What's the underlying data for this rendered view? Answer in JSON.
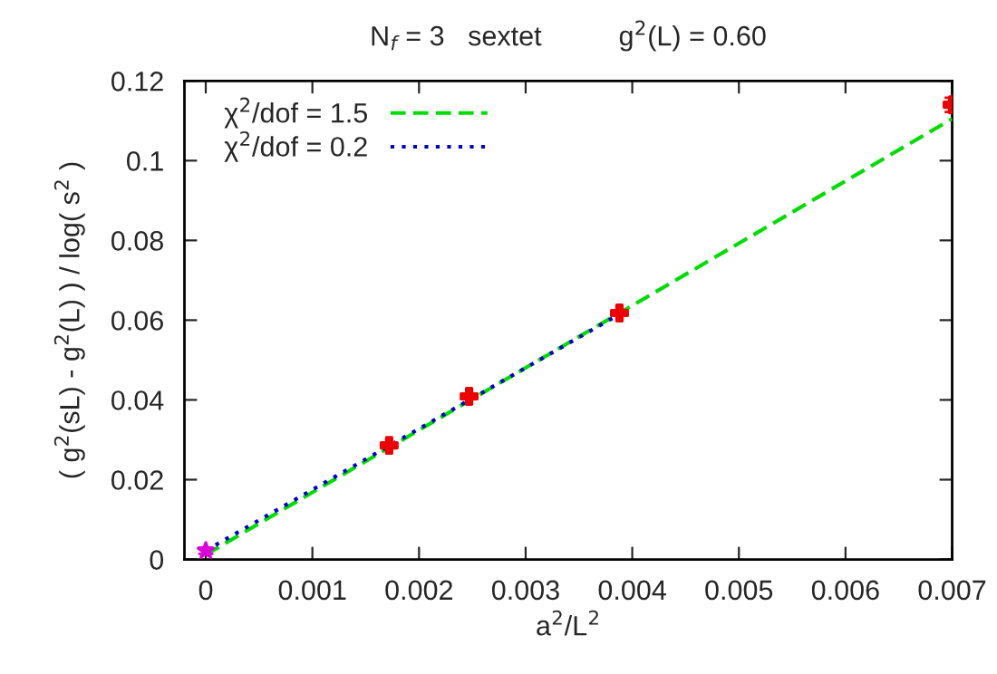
{
  "chart_data": {
    "type": "scatter",
    "title": "N$_{f}$ = 3   sextet          g$^{2}$(L) = 0.60",
    "xlabel": "a$^{2}$/L$^{2}$",
    "ylabel": "( g$^{2}$(sL) - g$^{2}$(L) ) / log( s$^{2}$ )",
    "xlim": [
      -0.0002,
      0.007
    ],
    "ylim": [
      0,
      0.12
    ],
    "xticks": [
      0,
      0.001,
      0.002,
      0.003,
      0.004,
      0.005,
      0.006,
      0.007
    ],
    "yticks": [
      0,
      0.02,
      0.04,
      0.06,
      0.08,
      0.1,
      0.12
    ],
    "grid": false,
    "legend": "top left",
    "series": [
      {
        "name": "χ$^{2}$/dof = 1.5",
        "type": "line",
        "color": "#00dd00",
        "line_style": "dashed",
        "marker": "none",
        "x": [
          0,
          0.007
        ],
        "values": [
          0.0012,
          0.1105
        ]
      },
      {
        "name": "χ$^{2}$/dof = 0.2",
        "type": "line",
        "color": "#0000cc",
        "line_style": "dotted",
        "marker": "none",
        "x": [
          0,
          0.0039
        ],
        "values": [
          0.0022,
          0.0618
        ]
      },
      {
        "color": "#ee0000",
        "marker": "cross",
        "x": [
          0.00172,
          0.00247,
          0.00388,
          0.007
        ],
        "values": [
          0.0286,
          0.0409,
          0.0618,
          0.114
        ],
        "errors": [
          0.0006,
          0.0006,
          0.0006,
          0.0018
        ]
      },
      {
        "color": "#dd00dd",
        "marker": "star",
        "x": [
          0
        ],
        "values": [
          0.0022
        ],
        "errors": [
          0.0008
        ]
      }
    ]
  }
}
